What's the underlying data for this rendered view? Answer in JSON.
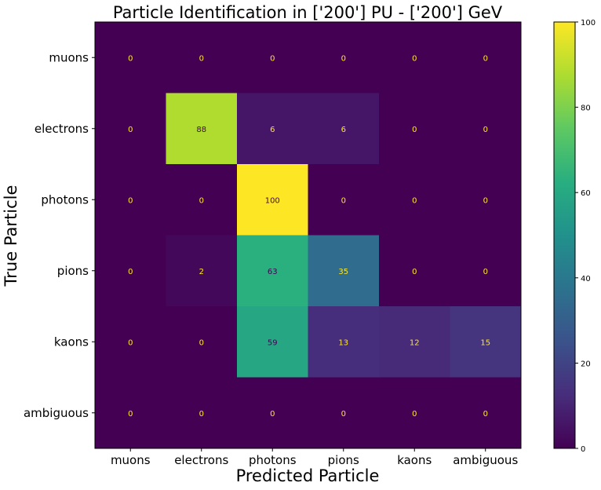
{
  "chart_data": {
    "type": "heatmap",
    "title": "Particle Identification in ['200'] PU - ['200'] GeV",
    "xlabel": "Predicted Particle",
    "ylabel": "True Particle",
    "x_categories": [
      "muons",
      "electrons",
      "photons",
      "pions",
      "kaons",
      "ambiguous"
    ],
    "y_categories": [
      "muons",
      "electrons",
      "photons",
      "pions",
      "kaons",
      "ambiguous"
    ],
    "values": [
      [
        0,
        0,
        0,
        0,
        0,
        0
      ],
      [
        0,
        88,
        6,
        6,
        0,
        0
      ],
      [
        0,
        0,
        100,
        0,
        0,
        0
      ],
      [
        0,
        2,
        63,
        35,
        0,
        0
      ],
      [
        0,
        0,
        59,
        13,
        12,
        15
      ],
      [
        0,
        0,
        0,
        0,
        0,
        0
      ]
    ],
    "colormap": "viridis",
    "zlim": [
      0,
      100
    ],
    "colorbar_ticks": [
      "0",
      "20",
      "40",
      "60",
      "80",
      "100"
    ],
    "grid": false
  }
}
